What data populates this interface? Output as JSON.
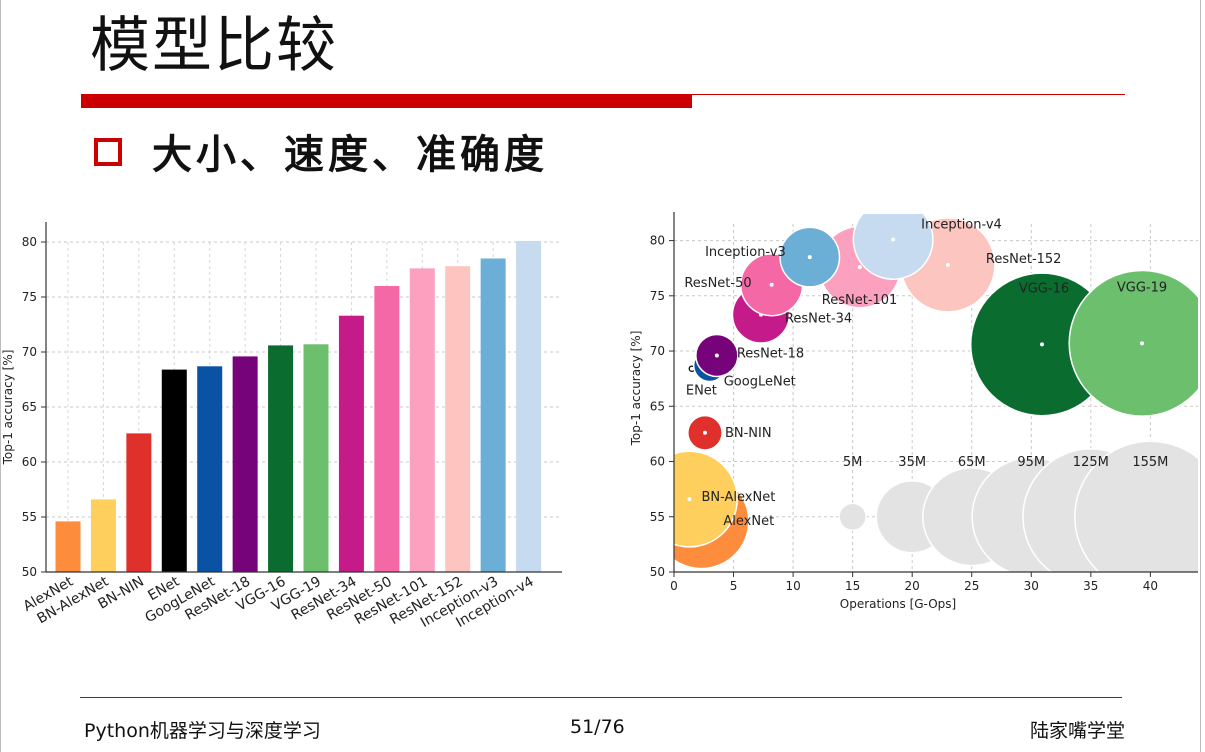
{
  "slide": {
    "title": "模型比较",
    "bullet": "大小、速度、准确度",
    "footer_left": "Python机器学习与深度学习",
    "footer_page": "51/76",
    "footer_right": "陆家嘴学堂",
    "accent_color": "#cc0000"
  },
  "chart_data": [
    {
      "type": "bar",
      "title": "",
      "xlabel": "",
      "ylabel": "Top-1 accuracy [%]",
      "ylim": [
        50,
        80
      ],
      "yticks": [
        50,
        55,
        60,
        65,
        70,
        75,
        80
      ],
      "grid": true,
      "categories": [
        "AlexNet",
        "BN-AlexNet",
        "BN-NIN",
        "ENet",
        "GoogLeNet",
        "ResNet-18",
        "VGG-16",
        "VGG-19",
        "ResNet-34",
        "ResNet-50",
        "ResNet-101",
        "ResNet-152",
        "Inception-v3",
        "Inception-v4"
      ],
      "values": [
        54.6,
        56.6,
        62.6,
        68.4,
        68.7,
        69.6,
        70.6,
        70.7,
        73.3,
        76.0,
        77.6,
        77.8,
        78.5,
        80.1
      ],
      "colors": [
        "#fd8d3c",
        "#fecf5c",
        "#e0302b",
        "#000000",
        "#0a52a3",
        "#77037a",
        "#0a6d2f",
        "#6bbf6d",
        "#c51b8a",
        "#f468a5",
        "#fba0be",
        "#fcc5c0",
        "#6baed6",
        "#c6dbef"
      ]
    },
    {
      "type": "scatter",
      "title": "",
      "xlabel": "Operations [G-Ops]",
      "ylabel": "Top-1 accuracy [%]",
      "xlim": [
        0,
        44
      ],
      "ylim": [
        50,
        81.5
      ],
      "xticks": [
        0,
        5,
        10,
        15,
        20,
        25,
        30,
        35,
        40
      ],
      "yticks": [
        50,
        55,
        60,
        65,
        70,
        75,
        80
      ],
      "grid": true,
      "points": [
        {
          "name": "AlexNet",
          "x": 2.3,
          "y": 54.6,
          "params_m": 61,
          "color": "#fd8d3c"
        },
        {
          "name": "BN-AlexNet",
          "x": 1.3,
          "y": 56.6,
          "params_m": 62,
          "color": "#fecf5c"
        },
        {
          "name": "BN-NIN",
          "x": 2.6,
          "y": 62.6,
          "params_m": 8,
          "color": "#e0302b"
        },
        {
          "name": "ENet",
          "x": 1.5,
          "y": 68.4,
          "params_m": 0.4,
          "color": "#000000"
        },
        {
          "name": "GoogLeNet",
          "x": 3.0,
          "y": 68.7,
          "params_m": 7,
          "color": "#0a52a3"
        },
        {
          "name": "ResNet-18",
          "x": 3.6,
          "y": 69.6,
          "params_m": 12,
          "color": "#77037a"
        },
        {
          "name": "VGG-16",
          "x": 30.9,
          "y": 70.6,
          "params_m": 138,
          "color": "#0a6d2f"
        },
        {
          "name": "VGG-19",
          "x": 39.3,
          "y": 70.7,
          "params_m": 144,
          "color": "#6bbf6d"
        },
        {
          "name": "ResNet-34",
          "x": 7.3,
          "y": 73.3,
          "params_m": 22,
          "color": "#c51b8a"
        },
        {
          "name": "ResNet-50",
          "x": 8.2,
          "y": 76.0,
          "params_m": 26,
          "color": "#f468a5"
        },
        {
          "name": "ResNet-101",
          "x": 15.6,
          "y": 77.6,
          "params_m": 45,
          "color": "#fba0be"
        },
        {
          "name": "ResNet-152",
          "x": 23.0,
          "y": 77.8,
          "params_m": 60,
          "color": "#fcc5c0"
        },
        {
          "name": "Inception-v3",
          "x": 11.4,
          "y": 78.5,
          "params_m": 24,
          "color": "#6baed6"
        },
        {
          "name": "Inception-v4",
          "x": 18.4,
          "y": 80.1,
          "params_m": 43,
          "color": "#c6dbef"
        }
      ],
      "size_legend": [
        {
          "label": "5M",
          "x": 15,
          "y": 55,
          "params_m": 5
        },
        {
          "label": "35M",
          "x": 20,
          "y": 55,
          "params_m": 35
        },
        {
          "label": "65M",
          "x": 25,
          "y": 55,
          "params_m": 65
        },
        {
          "label": "95M",
          "x": 30,
          "y": 55,
          "params_m": 95
        },
        {
          "label": "125M",
          "x": 35,
          "y": 55,
          "params_m": 125
        },
        {
          "label": "155M",
          "x": 40,
          "y": 55,
          "params_m": 155
        }
      ]
    }
  ]
}
